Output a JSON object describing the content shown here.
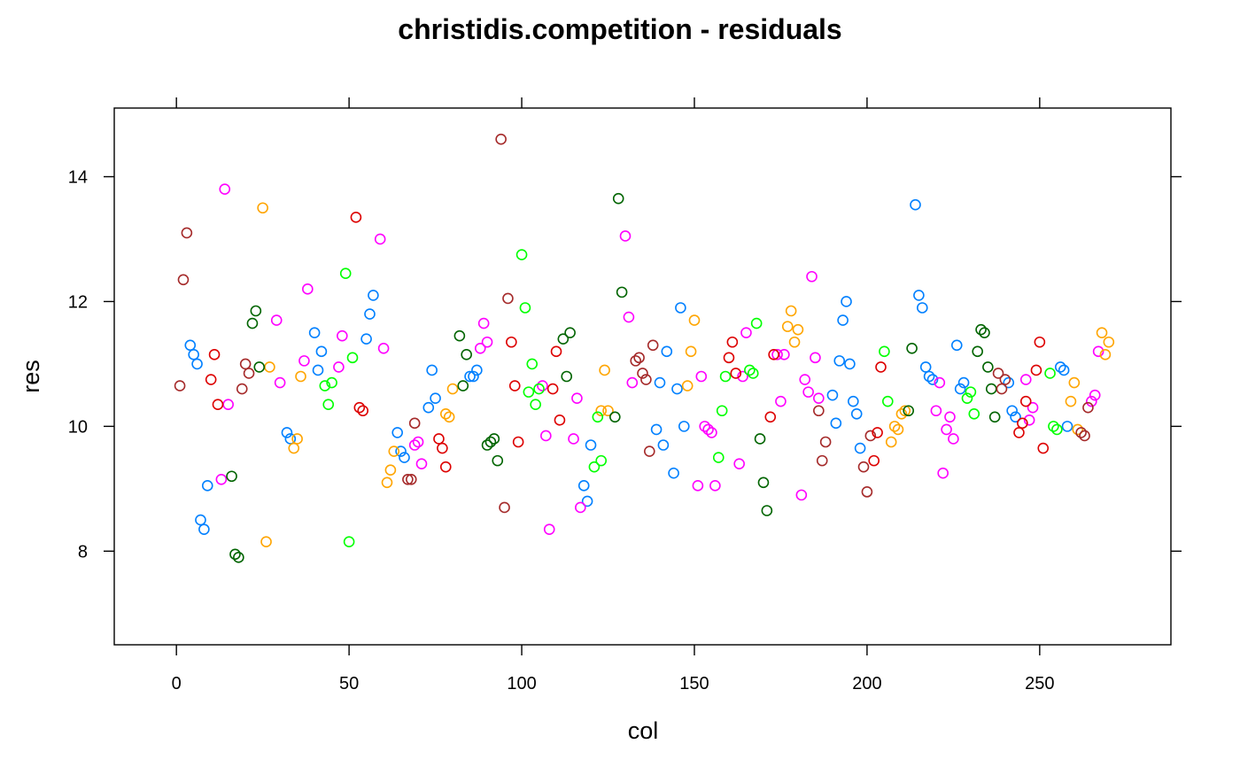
{
  "chart_data": {
    "type": "scatter",
    "title": "christidis.competition - residuals",
    "xlabel": "col",
    "ylabel": "res",
    "xlim": [
      -18,
      288
    ],
    "ylim": [
      6.5,
      15.1
    ],
    "x_ticks": [
      0,
      50,
      100,
      150,
      200,
      250
    ],
    "x_tick_labels": [
      "0",
      "50",
      "100",
      "150",
      "200",
      "250"
    ],
    "y_ticks": [
      8,
      10,
      12,
      14
    ],
    "y_tick_labels": [
      "8",
      "10",
      "12",
      "14"
    ],
    "grid": false,
    "legend": "none",
    "series": [
      {
        "color": "#0080ff",
        "points": [
          [
            4,
            11.3
          ],
          [
            5,
            11.15
          ],
          [
            6,
            11.0
          ],
          [
            7,
            8.5
          ],
          [
            8,
            8.35
          ],
          [
            9,
            9.05
          ],
          [
            32,
            9.9
          ],
          [
            33,
            9.8
          ],
          [
            40,
            11.5
          ],
          [
            41,
            10.9
          ],
          [
            42,
            11.2
          ],
          [
            55,
            11.4
          ],
          [
            56,
            11.8
          ],
          [
            57,
            12.1
          ],
          [
            64,
            9.9
          ],
          [
            65,
            9.6
          ],
          [
            66,
            9.5
          ],
          [
            73,
            10.3
          ],
          [
            74,
            10.9
          ],
          [
            75,
            10.45
          ],
          [
            85,
            10.8
          ],
          [
            86,
            10.8
          ],
          [
            87,
            10.9
          ],
          [
            118,
            9.05
          ],
          [
            119,
            8.8
          ],
          [
            120,
            9.7
          ],
          [
            139,
            9.95
          ],
          [
            140,
            10.7
          ],
          [
            141,
            9.7
          ],
          [
            142,
            11.2
          ],
          [
            144,
            9.25
          ],
          [
            145,
            10.6
          ],
          [
            146,
            11.9
          ],
          [
            147,
            10.0
          ],
          [
            190,
            10.5
          ],
          [
            191,
            10.05
          ],
          [
            192,
            11.05
          ],
          [
            193,
            11.7
          ],
          [
            194,
            12.0
          ],
          [
            195,
            11.0
          ],
          [
            196,
            10.4
          ],
          [
            197,
            10.2
          ],
          [
            198,
            9.65
          ],
          [
            214,
            13.55
          ],
          [
            215,
            12.1
          ],
          [
            216,
            11.9
          ],
          [
            217,
            10.95
          ],
          [
            218,
            10.8
          ],
          [
            219,
            10.75
          ],
          [
            226,
            11.3
          ],
          [
            227,
            10.6
          ],
          [
            228,
            10.7
          ],
          [
            241,
            10.7
          ],
          [
            242,
            10.25
          ],
          [
            243,
            10.15
          ],
          [
            256,
            10.95
          ],
          [
            257,
            10.9
          ],
          [
            258,
            10.0
          ]
        ]
      },
      {
        "color": "#ff00ff",
        "points": [
          [
            13,
            9.15
          ],
          [
            14,
            13.8
          ],
          [
            15,
            10.35
          ],
          [
            29,
            11.7
          ],
          [
            30,
            10.7
          ],
          [
            37,
            11.05
          ],
          [
            38,
            12.2
          ],
          [
            47,
            10.95
          ],
          [
            48,
            11.45
          ],
          [
            59,
            13.0
          ],
          [
            60,
            11.25
          ],
          [
            69,
            9.7
          ],
          [
            70,
            9.75
          ],
          [
            71,
            9.4
          ],
          [
            88,
            11.25
          ],
          [
            89,
            11.65
          ],
          [
            90,
            11.35
          ],
          [
            106,
            10.65
          ],
          [
            107,
            9.85
          ],
          [
            108,
            8.35
          ],
          [
            115,
            9.8
          ],
          [
            116,
            10.45
          ],
          [
            117,
            8.7
          ],
          [
            130,
            13.05
          ],
          [
            131,
            11.75
          ],
          [
            132,
            10.7
          ],
          [
            151,
            9.05
          ],
          [
            152,
            10.8
          ],
          [
            153,
            10.0
          ],
          [
            154,
            9.95
          ],
          [
            155,
            9.9
          ],
          [
            156,
            9.05
          ],
          [
            163,
            9.4
          ],
          [
            164,
            10.8
          ],
          [
            165,
            11.5
          ],
          [
            174,
            11.15
          ],
          [
            175,
            10.4
          ],
          [
            176,
            11.15
          ],
          [
            181,
            8.9
          ],
          [
            182,
            10.75
          ],
          [
            183,
            10.55
          ],
          [
            184,
            12.4
          ],
          [
            185,
            11.1
          ],
          [
            186,
            10.45
          ],
          [
            220,
            10.25
          ],
          [
            221,
            10.7
          ],
          [
            222,
            9.25
          ],
          [
            223,
            9.95
          ],
          [
            224,
            10.15
          ],
          [
            225,
            9.8
          ],
          [
            246,
            10.75
          ],
          [
            247,
            10.1
          ],
          [
            248,
            10.3
          ],
          [
            265,
            10.4
          ],
          [
            266,
            10.5
          ],
          [
            267,
            11.2
          ]
        ]
      },
      {
        "color": "#ffa500",
        "points": [
          [
            25,
            13.5
          ],
          [
            26,
            8.15
          ],
          [
            27,
            10.95
          ],
          [
            34,
            9.65
          ],
          [
            35,
            9.8
          ],
          [
            36,
            10.8
          ],
          [
            61,
            9.1
          ],
          [
            62,
            9.3
          ],
          [
            63,
            9.6
          ],
          [
            78,
            10.2
          ],
          [
            79,
            10.15
          ],
          [
            80,
            10.6
          ],
          [
            123,
            10.25
          ],
          [
            124,
            10.9
          ],
          [
            125,
            10.25
          ],
          [
            148,
            10.65
          ],
          [
            149,
            11.2
          ],
          [
            150,
            11.7
          ],
          [
            177,
            11.6
          ],
          [
            178,
            11.85
          ],
          [
            179,
            11.35
          ],
          [
            180,
            11.55
          ],
          [
            207,
            9.75
          ],
          [
            208,
            10.0
          ],
          [
            209,
            9.95
          ],
          [
            210,
            10.2
          ],
          [
            211,
            10.25
          ],
          [
            259,
            10.4
          ],
          [
            260,
            10.7
          ],
          [
            261,
            9.95
          ],
          [
            268,
            11.5
          ],
          [
            269,
            11.15
          ],
          [
            270,
            11.35
          ]
        ]
      },
      {
        "color": "#00ff00",
        "points": [
          [
            43,
            10.65
          ],
          [
            44,
            10.35
          ],
          [
            45,
            10.7
          ],
          [
            49,
            12.45
          ],
          [
            50,
            8.15
          ],
          [
            51,
            11.1
          ],
          [
            100,
            12.75
          ],
          [
            101,
            11.9
          ],
          [
            102,
            10.55
          ],
          [
            103,
            11.0
          ],
          [
            104,
            10.35
          ],
          [
            105,
            10.6
          ],
          [
            121,
            9.35
          ],
          [
            122,
            10.15
          ],
          [
            123,
            9.45
          ],
          [
            157,
            9.5
          ],
          [
            158,
            10.25
          ],
          [
            159,
            10.8
          ],
          [
            166,
            10.9
          ],
          [
            167,
            10.85
          ],
          [
            168,
            11.65
          ],
          [
            205,
            11.2
          ],
          [
            206,
            10.4
          ],
          [
            229,
            10.45
          ],
          [
            230,
            10.55
          ],
          [
            231,
            10.2
          ],
          [
            253,
            10.85
          ],
          [
            254,
            10.0
          ],
          [
            255,
            9.95
          ]
        ]
      },
      {
        "color": "#006400",
        "points": [
          [
            16,
            9.2
          ],
          [
            17,
            7.95
          ],
          [
            18,
            7.9
          ],
          [
            22,
            11.65
          ],
          [
            23,
            11.85
          ],
          [
            24,
            10.95
          ],
          [
            82,
            11.45
          ],
          [
            83,
            10.65
          ],
          [
            84,
            11.15
          ],
          [
            90,
            9.7
          ],
          [
            91,
            9.75
          ],
          [
            92,
            9.8
          ],
          [
            93,
            9.45
          ],
          [
            112,
            11.4
          ],
          [
            113,
            10.8
          ],
          [
            114,
            11.5
          ],
          [
            127,
            10.15
          ],
          [
            128,
            13.65
          ],
          [
            129,
            12.15
          ],
          [
            169,
            9.8
          ],
          [
            170,
            9.1
          ],
          [
            171,
            8.65
          ],
          [
            212,
            10.25
          ],
          [
            213,
            11.25
          ],
          [
            232,
            11.2
          ],
          [
            233,
            11.55
          ],
          [
            234,
            11.5
          ],
          [
            235,
            10.95
          ],
          [
            236,
            10.6
          ],
          [
            237,
            10.15
          ]
        ]
      },
      {
        "color": "#a52a2a",
        "points": [
          [
            1,
            10.65
          ],
          [
            2,
            12.35
          ],
          [
            3,
            13.1
          ],
          [
            19,
            10.6
          ],
          [
            20,
            11.0
          ],
          [
            21,
            10.85
          ],
          [
            67,
            9.15
          ],
          [
            68,
            9.15
          ],
          [
            69,
            10.05
          ],
          [
            94,
            14.6
          ],
          [
            95,
            8.7
          ],
          [
            96,
            12.05
          ],
          [
            133,
            11.05
          ],
          [
            134,
            11.1
          ],
          [
            135,
            10.85
          ],
          [
            136,
            10.75
          ],
          [
            137,
            9.6
          ],
          [
            138,
            11.3
          ],
          [
            186,
            10.25
          ],
          [
            187,
            9.45
          ],
          [
            188,
            9.75
          ],
          [
            199,
            9.35
          ],
          [
            200,
            8.95
          ],
          [
            201,
            9.85
          ],
          [
            238,
            10.85
          ],
          [
            239,
            10.6
          ],
          [
            240,
            10.75
          ],
          [
            262,
            9.9
          ],
          [
            263,
            9.85
          ],
          [
            264,
            10.3
          ]
        ]
      },
      {
        "color": "#dd0000",
        "points": [
          [
            10,
            10.75
          ],
          [
            11,
            11.15
          ],
          [
            12,
            10.35
          ],
          [
            52,
            13.35
          ],
          [
            53,
            10.3
          ],
          [
            54,
            10.25
          ],
          [
            76,
            9.8
          ],
          [
            77,
            9.65
          ],
          [
            78,
            9.35
          ],
          [
            97,
            11.35
          ],
          [
            98,
            10.65
          ],
          [
            99,
            9.75
          ],
          [
            109,
            10.6
          ],
          [
            110,
            11.2
          ],
          [
            111,
            10.1
          ],
          [
            160,
            11.1
          ],
          [
            161,
            11.35
          ],
          [
            162,
            10.85
          ],
          [
            172,
            10.15
          ],
          [
            173,
            11.15
          ],
          [
            202,
            9.45
          ],
          [
            203,
            9.9
          ],
          [
            204,
            10.95
          ],
          [
            244,
            9.9
          ],
          [
            245,
            10.05
          ],
          [
            246,
            10.4
          ],
          [
            249,
            10.9
          ],
          [
            250,
            11.35
          ],
          [
            251,
            9.65
          ]
        ]
      }
    ]
  }
}
